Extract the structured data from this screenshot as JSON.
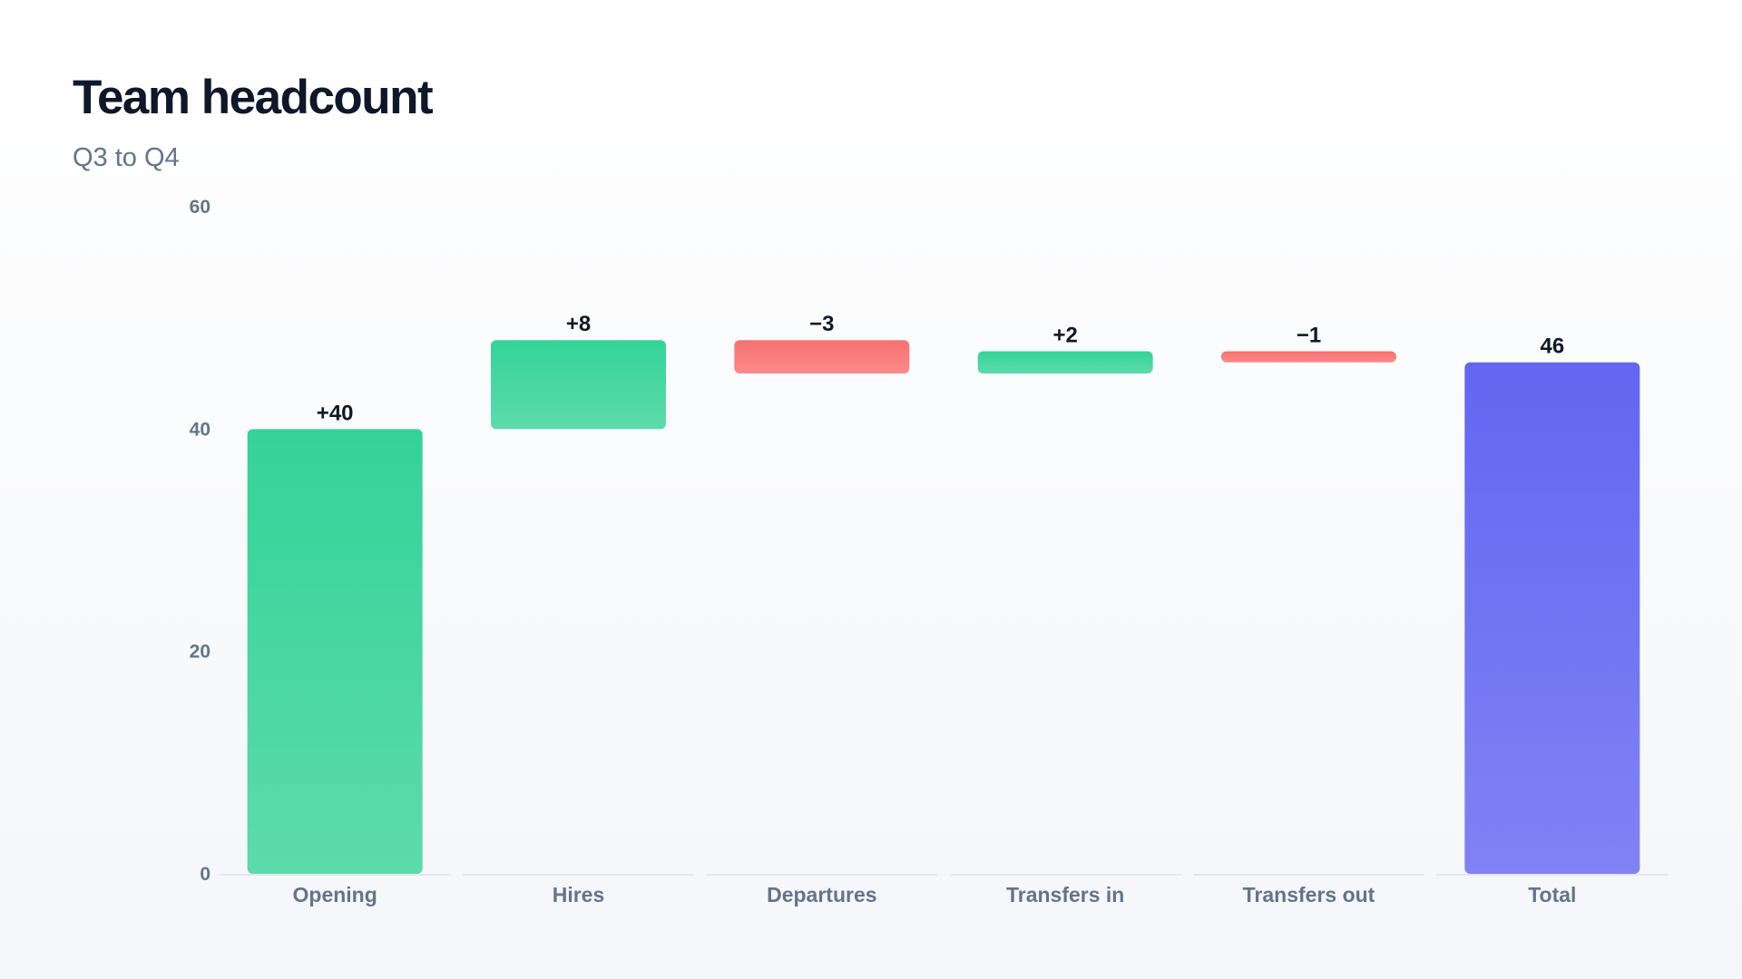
{
  "header": {
    "title": "Team headcount",
    "subtitle": "Q3 to Q4"
  },
  "colors": {
    "increase_top": "#34d399",
    "increase_bottom": "#5ddbaa",
    "decrease_top": "#f87171",
    "decrease_bottom": "#fb8a8a",
    "total_top": "#6366f1",
    "total_bottom": "#8083f4",
    "baseline": "#e2e8f0",
    "tick_text": "#64748b",
    "label_text": "#111827"
  },
  "chart_data": {
    "type": "bar",
    "subtype": "waterfall",
    "title": "Team headcount",
    "subtitle": "Q3 to Q4",
    "xlabel": "",
    "ylabel": "",
    "ylim": [
      0,
      60
    ],
    "yticks": [
      0,
      20,
      40,
      60
    ],
    "grid": false,
    "legend": "none",
    "categories": [
      "Opening",
      "Hires",
      "Departures",
      "Transfers in",
      "Transfers out",
      "Total"
    ],
    "values": [
      40,
      8,
      -3,
      2,
      -1,
      46
    ],
    "kinds": [
      "increase",
      "increase",
      "decrease",
      "increase",
      "decrease",
      "total"
    ],
    "data_labels": [
      "+40",
      "+8",
      "−3",
      "+2",
      "−1",
      "46"
    ]
  }
}
